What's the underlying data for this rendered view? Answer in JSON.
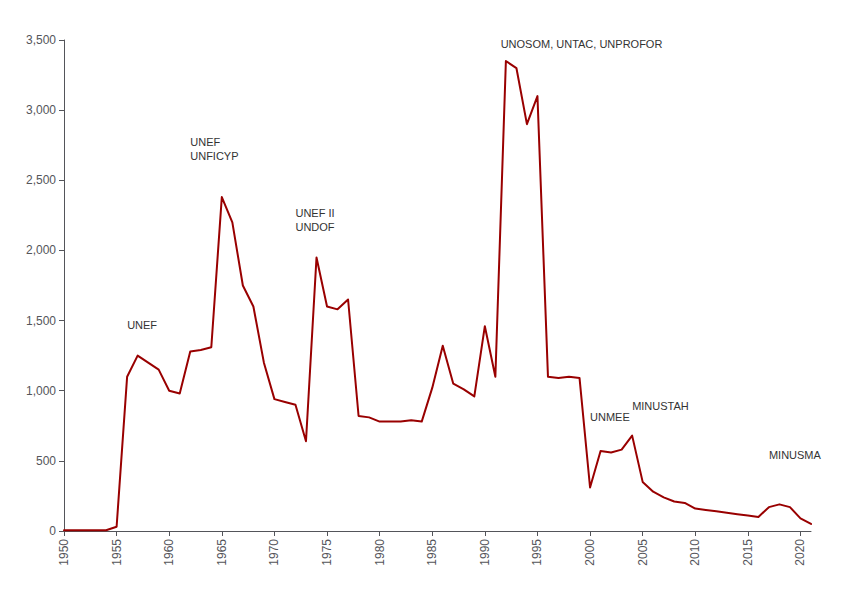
{
  "chart_data": {
    "type": "line",
    "x": [
      1950,
      1951,
      1952,
      1953,
      1954,
      1955,
      1956,
      1957,
      1958,
      1959,
      1960,
      1961,
      1962,
      1963,
      1964,
      1965,
      1966,
      1967,
      1968,
      1969,
      1970,
      1971,
      1972,
      1973,
      1974,
      1975,
      1976,
      1977,
      1978,
      1979,
      1980,
      1981,
      1982,
      1983,
      1984,
      1985,
      1986,
      1987,
      1988,
      1989,
      1990,
      1991,
      1992,
      1993,
      1994,
      1995,
      1996,
      1997,
      1998,
      1999,
      2000,
      2001,
      2002,
      2003,
      2004,
      2005,
      2006,
      2007,
      2008,
      2009,
      2010,
      2011,
      2012,
      2013,
      2014,
      2015,
      2016,
      2017,
      2018,
      2019,
      2020,
      2021
    ],
    "values": [
      5,
      5,
      5,
      5,
      5,
      30,
      1100,
      1250,
      1200,
      1150,
      1000,
      980,
      1280,
      1290,
      1310,
      2380,
      2200,
      1750,
      1600,
      1200,
      940,
      920,
      900,
      640,
      1950,
      1600,
      1580,
      1650,
      820,
      810,
      780,
      780,
      780,
      790,
      780,
      1020,
      1320,
      1050,
      1010,
      960,
      1460,
      1100,
      3350,
      3300,
      2900,
      3100,
      1100,
      1090,
      1100,
      1090,
      310,
      570,
      560,
      580,
      680,
      350,
      280,
      240,
      210,
      200,
      160,
      150,
      140,
      130,
      120,
      110,
      100,
      170,
      190,
      170,
      90,
      50
    ],
    "color": "#990000",
    "xlim": [
      1950,
      2021
    ],
    "xticks": [
      1950,
      1955,
      1960,
      1965,
      1970,
      1975,
      1980,
      1985,
      1990,
      1995,
      2000,
      2005,
      2010,
      2015,
      2020
    ],
    "ylim": [
      0,
      3500
    ],
    "yticks": [
      0,
      500,
      {
        "value": 1000,
        "label": "1,000"
      },
      {
        "value": 1500,
        "label": "1,500"
      },
      {
        "value": 2000,
        "label": "2,000"
      },
      {
        "value": 2500,
        "label": "2,500"
      },
      {
        "value": 3000,
        "label": "3,000"
      },
      {
        "value": 3500,
        "label": "3,500"
      }
    ],
    "annotations": [
      {
        "text": "UNEF",
        "x": 1956,
        "y": 1420
      },
      {
        "text": "UNEF\nUNFICYP",
        "x": 1962,
        "y": 2620
      },
      {
        "text": "UNEF II\nUNDOF",
        "x": 1972,
        "y": 2120
      },
      {
        "text": "UNOSOM, UNTAC, UNPROFOR",
        "x": 1991.5,
        "y": 3420
      },
      {
        "text": "UNMEE",
        "x": 2000,
        "y": 760
      },
      {
        "text": "MINUSTAH",
        "x": 2004,
        "y": 840
      },
      {
        "text": "MINUSMA",
        "x": 2017,
        "y": 490
      }
    ],
    "grid": false
  }
}
